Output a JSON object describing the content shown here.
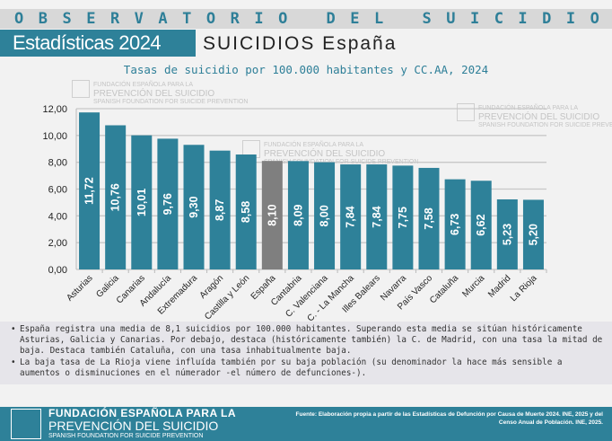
{
  "header": {
    "observatory": [
      "O",
      "B",
      "S",
      "E",
      "R",
      "V",
      "A",
      "T",
      "O",
      "R",
      "I",
      "O",
      " ",
      "D",
      "E",
      "L",
      " ",
      "S",
      "U",
      "I",
      "C",
      "I",
      "D",
      "I",
      "O"
    ],
    "stats_label": "Estadísticas 2024",
    "subtitle": "SUICIDIOS España"
  },
  "watermark": {
    "line1": "FUNDACIÓN ESPAÑOLA PARA LA",
    "line2": "PREVENCIÓN DEL SUICIDIO",
    "line3": "SPANISH FOUNDATION FOR SUICIDE PREVENTION"
  },
  "chart_data": {
    "type": "bar",
    "title": "Tasas de suicidio por 100.000 habitantes y CC.AA, 2024",
    "xlabel": "",
    "ylabel": "",
    "ylim": [
      0,
      12
    ],
    "yticks": [
      "0,00",
      "2,00",
      "4,00",
      "6,00",
      "8,00",
      "10,00",
      "12,00"
    ],
    "categories": [
      "Asturias",
      "Galicia",
      "Canarias",
      "Andalucía",
      "Extremadura",
      "Aragón",
      "Castilla y León",
      "España",
      "Cantabria",
      "C. Valenciana",
      "C. - La Mancha",
      "Illes Balears",
      "Navarra",
      "País Vasco",
      "Cataluña",
      "Murcia",
      "Madrid",
      "La Rioja"
    ],
    "values": [
      11.72,
      10.76,
      10.01,
      9.76,
      9.3,
      8.87,
      8.58,
      8.1,
      8.09,
      8.0,
      7.84,
      7.84,
      7.75,
      7.58,
      6.73,
      6.62,
      5.23,
      5.2
    ],
    "labels": [
      "11,72",
      "10,76",
      "10,01",
      "9,76",
      "9,30",
      "8,87",
      "8,58",
      "8,10",
      "8,09",
      "8,00",
      "7,84",
      "7,84",
      "7,75",
      "7,58",
      "6,73",
      "6,62",
      "5,23",
      "5,20"
    ],
    "highlight": "España",
    "colors": {
      "bar": "#2e8199",
      "highlight": "#7f7f7f"
    },
    "grid": true
  },
  "notes": [
    "España registra una media de 8,1 suicidios por 100.000 habitantes. Superando esta media se sitúan históricamente Asturias, Galicia y Canarias. Por debajo, destaca (históricamente también) la C. de Madrid, con una tasa la mitad de baja. Destaca también Cataluña, con una tasa inhabitualmente baja.",
    "La baja tasa de La Rioja viene influída también por su baja población (su denominador la hace más sensible a aumentos o disminuciones en el númerador -el número de defunciones-)."
  ],
  "footer": {
    "org_line1": "FUNDACIÓN ESPAÑOLA PARA LA",
    "org_line2": "PREVENCIÓN DEL SUICIDIO",
    "org_line3": "SPANISH FOUNDATION FOR SUICIDE PREVENTION",
    "source": "Fuente: Elaboración propia a partir de las Estadísticas de Defunción por Causa de Muerte 2024. INE, 2025 y del Censo Anual de Población. INE, 2025."
  }
}
